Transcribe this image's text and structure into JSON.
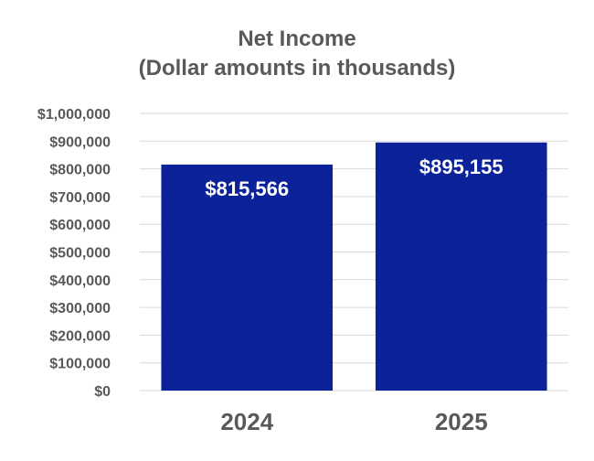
{
  "chart_data": {
    "type": "bar",
    "title": "Net Income",
    "subtitle": "(Dollar amounts in thousands)",
    "categories": [
      "2024",
      "2025"
    ],
    "values": [
      815566,
      895155
    ],
    "data_labels": [
      "$815,566",
      "$895,155"
    ],
    "ylim": [
      0,
      1000000
    ],
    "y_ticks": [
      0,
      100000,
      200000,
      300000,
      400000,
      500000,
      600000,
      700000,
      800000,
      900000,
      1000000
    ],
    "y_tick_labels": [
      "$0",
      "$100,000",
      "$200,000",
      "$300,000",
      "$400,000",
      "$500,000",
      "$600,000",
      "$700,000",
      "$800,000",
      "$900,000",
      "$1,000,000"
    ],
    "grid": true,
    "legend": "none",
    "colors": {
      "bar": "#0b2298",
      "text": "#595959",
      "grid": "#d9d9d9",
      "data_label": "#ffffff"
    }
  }
}
